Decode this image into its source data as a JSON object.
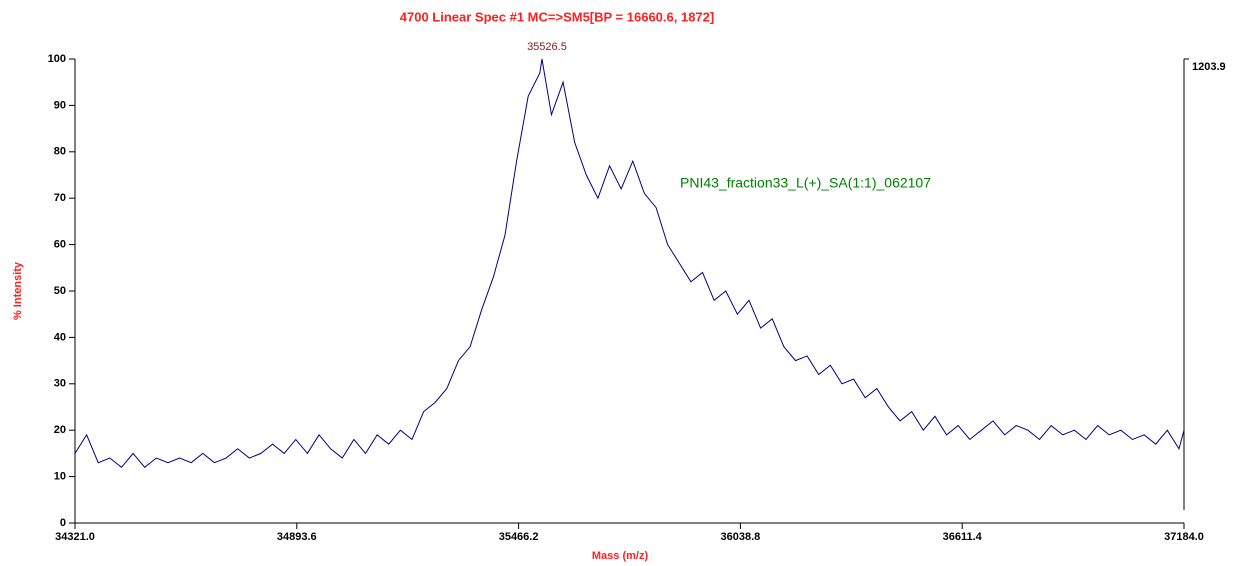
{
  "chart_data": {
    "type": "line",
    "title": "4700 Linear Spec #1 MC=>SM5[BP = 16660.6, 1872]",
    "xlabel": "Mass (m/z)",
    "ylabel": "% Intensity",
    "sample_label": "PNI43_fraction33_L(+)_SA(1:1)_062107",
    "peak_label": {
      "x": 35526.5,
      "y": 100
    },
    "xlim": [
      34321,
      37184
    ],
    "ylim": [
      0,
      100
    ],
    "y2lim": [
      0,
      1203.9
    ],
    "y2ticks": [
      1203.9
    ],
    "xticks": [
      {
        "value": 34321,
        "label": "34321.0"
      },
      34893.6,
      35466.2,
      36038.8,
      36611.4,
      {
        "value": 37184,
        "label": "37184.0"
      }
    ],
    "yticks": [
      0,
      10,
      20,
      30,
      40,
      50,
      60,
      70,
      80,
      90,
      100
    ],
    "series": [
      {
        "color": "#000080",
        "x": [
          34321,
          34351,
          34381,
          34411,
          34441,
          34471,
          34501,
          34531,
          34561,
          34591,
          34621,
          34651,
          34681,
          34711,
          34741,
          34771,
          34801,
          34831,
          34861,
          34891,
          34921,
          34951,
          34981,
          35011,
          35041,
          35071,
          35101,
          35131,
          35161,
          35191,
          35221,
          35251,
          35281,
          35311,
          35341,
          35371,
          35401,
          35431,
          35461,
          35491,
          35521,
          35526.5,
          35551,
          35581,
          35611,
          35641,
          35671,
          35701,
          35731,
          35761,
          35791,
          35821,
          35851,
          35881,
          35911,
          35941,
          35971,
          36001,
          36031,
          36061,
          36091,
          36121,
          36151,
          36181,
          36211,
          36241,
          36271,
          36301,
          36331,
          36361,
          36391,
          36421,
          36451,
          36481,
          36511,
          36541,
          36571,
          36601,
          36631,
          36661,
          36691,
          36721,
          36751,
          36781,
          36811,
          36841,
          36871,
          36901,
          36931,
          36961,
          36991,
          37021,
          37051,
          37081,
          37111,
          37141,
          37171,
          37184
        ],
        "values": [
          15,
          19,
          13,
          14,
          12,
          15,
          12,
          14,
          13,
          14,
          13,
          15,
          13,
          14,
          16,
          14,
          15,
          17,
          15,
          18,
          15,
          19,
          16,
          14,
          18,
          15,
          19,
          17,
          20,
          18,
          24,
          26,
          29,
          35,
          38,
          46,
          53,
          62,
          78,
          92,
          97,
          100,
          88,
          95,
          82,
          75,
          70,
          77,
          72,
          78,
          71,
          68,
          60,
          56,
          52,
          54,
          48,
          50,
          45,
          48,
          42,
          44,
          38,
          35,
          36,
          32,
          34,
          30,
          31,
          27,
          29,
          25,
          22,
          24,
          20,
          23,
          19,
          21,
          18,
          20,
          22,
          19,
          21,
          20,
          18,
          21,
          19,
          20,
          18,
          21,
          19,
          20,
          18,
          19,
          17,
          20,
          16,
          20
        ]
      }
    ]
  }
}
